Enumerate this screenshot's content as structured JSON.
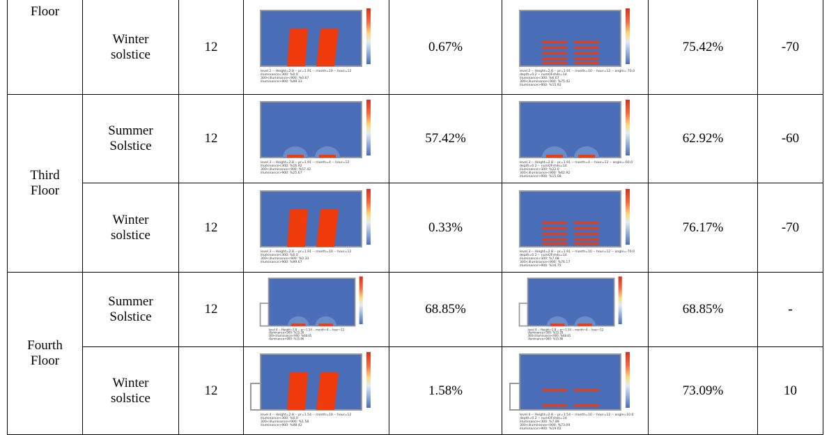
{
  "floors": [
    {
      "label": "Floor",
      "rows": [
        {
          "season": "Winter solstice",
          "hour": "12",
          "sim1": [
            "level 2 -- Height=2.8 -- pr=1.91 -- month=10 -- hour=12",
            "illuminance<300: %0.0",
            "300<illuminance<900: %0.67",
            "illuminance>900: %99.33"
          ],
          "pct1": "0.67%",
          "sim2": [
            "level 2 -- Height=2.8 -- pr=1.91 -- month=10 -- hour=12 -- angle=-70.0",
            "depth=0.2 -- numOFshds=14",
            "illuminance<300: %6.67",
            "300<illuminance<900: %75.42",
            "illuminance>900: %15.92"
          ],
          "pct2": "75.42%",
          "angle": "-70"
        }
      ]
    },
    {
      "label": "Third Floor",
      "rows": [
        {
          "season": "Summer Solstice",
          "hour": "12",
          "sim1": [
            "level 3 -- Height=2.8 -- pr=1.91 -- month=4 -- hour=12",
            "illuminance<300: %16.92",
            "300<illuminance<900: %57.42",
            "illuminance>900: %25.67"
          ],
          "pct1": "57.42%",
          "sim2": [
            "level 3 -- Height=2.8 -- pr=1.91 -- month=4 -- hour=12 -- angle=-60.0",
            "depth=0.2 -- numOFshds=14",
            "illuminance<300: %22.0",
            "300<illuminance<900: %62.92",
            "illuminance>900: %15.08"
          ],
          "pct2": "62.92%",
          "angle": "-60"
        },
        {
          "season": "Winter solstice",
          "hour": "12",
          "sim1": [
            "level 3 -- Height=2.8 -- pr=1.91 -- month=10 -- hour=12",
            "illuminance<300: %0.0",
            "300<illuminance<900: %0.33",
            "illuminance>900: %99.67"
          ],
          "pct1": "0.33%",
          "sim2": [
            "level 3 -- Height=2.8 -- pr=1.91 -- month=10 -- hour=12 -- angle=-70.0",
            "depth=0.2 -- numOFshds=14",
            "illuminance<300: %7.08",
            "300<illuminance<900: %76.17",
            "illuminance>900: %16.75"
          ],
          "pct2": "76.17%",
          "angle": "-70"
        }
      ]
    },
    {
      "label": "Fourth Floor",
      "rows": [
        {
          "season": "Summer Solstice",
          "hour": "12",
          "sim1": [
            "level 4 -- Height=2.8 -- pr=1.54 -- month=4 -- hour=12",
            "illuminance<300: %15.28",
            "300<illuminance<900: %68.85",
            "illuminance>900: %15.86"
          ],
          "pct1": "68.85%",
          "sim2": [
            "level 4 -- Height=2.8 -- pr=1.54 -- month=4 -- hour=12",
            "illuminance<300: %15.28",
            "300<illuminance<900: %68.85",
            "illuminance>900: %15.86"
          ],
          "pct2": "68.85%",
          "angle": "-"
        },
        {
          "season": "Winter solstice",
          "hour": "12",
          "sim1": [
            "level 4 -- Height=2.8 -- pr=1.54 -- month=10 -- hour=12",
            "illuminance<300: %0.0",
            "300<illuminance<900: %1.58",
            "illuminance>900: %98.42"
          ],
          "pct1": "1.58%",
          "sim2": [
            "level 4 -- Height=2.8 -- pr=1.54 -- month=10 -- hour=12 -- angle=10.0",
            "depth=0.2 -- numOFshds=14",
            "illuminance<300: %7.89",
            "300<illuminance<900: %73.09",
            "illuminance>900: %19.02"
          ],
          "pct2": "73.09%",
          "angle": "10"
        }
      ]
    }
  ]
}
